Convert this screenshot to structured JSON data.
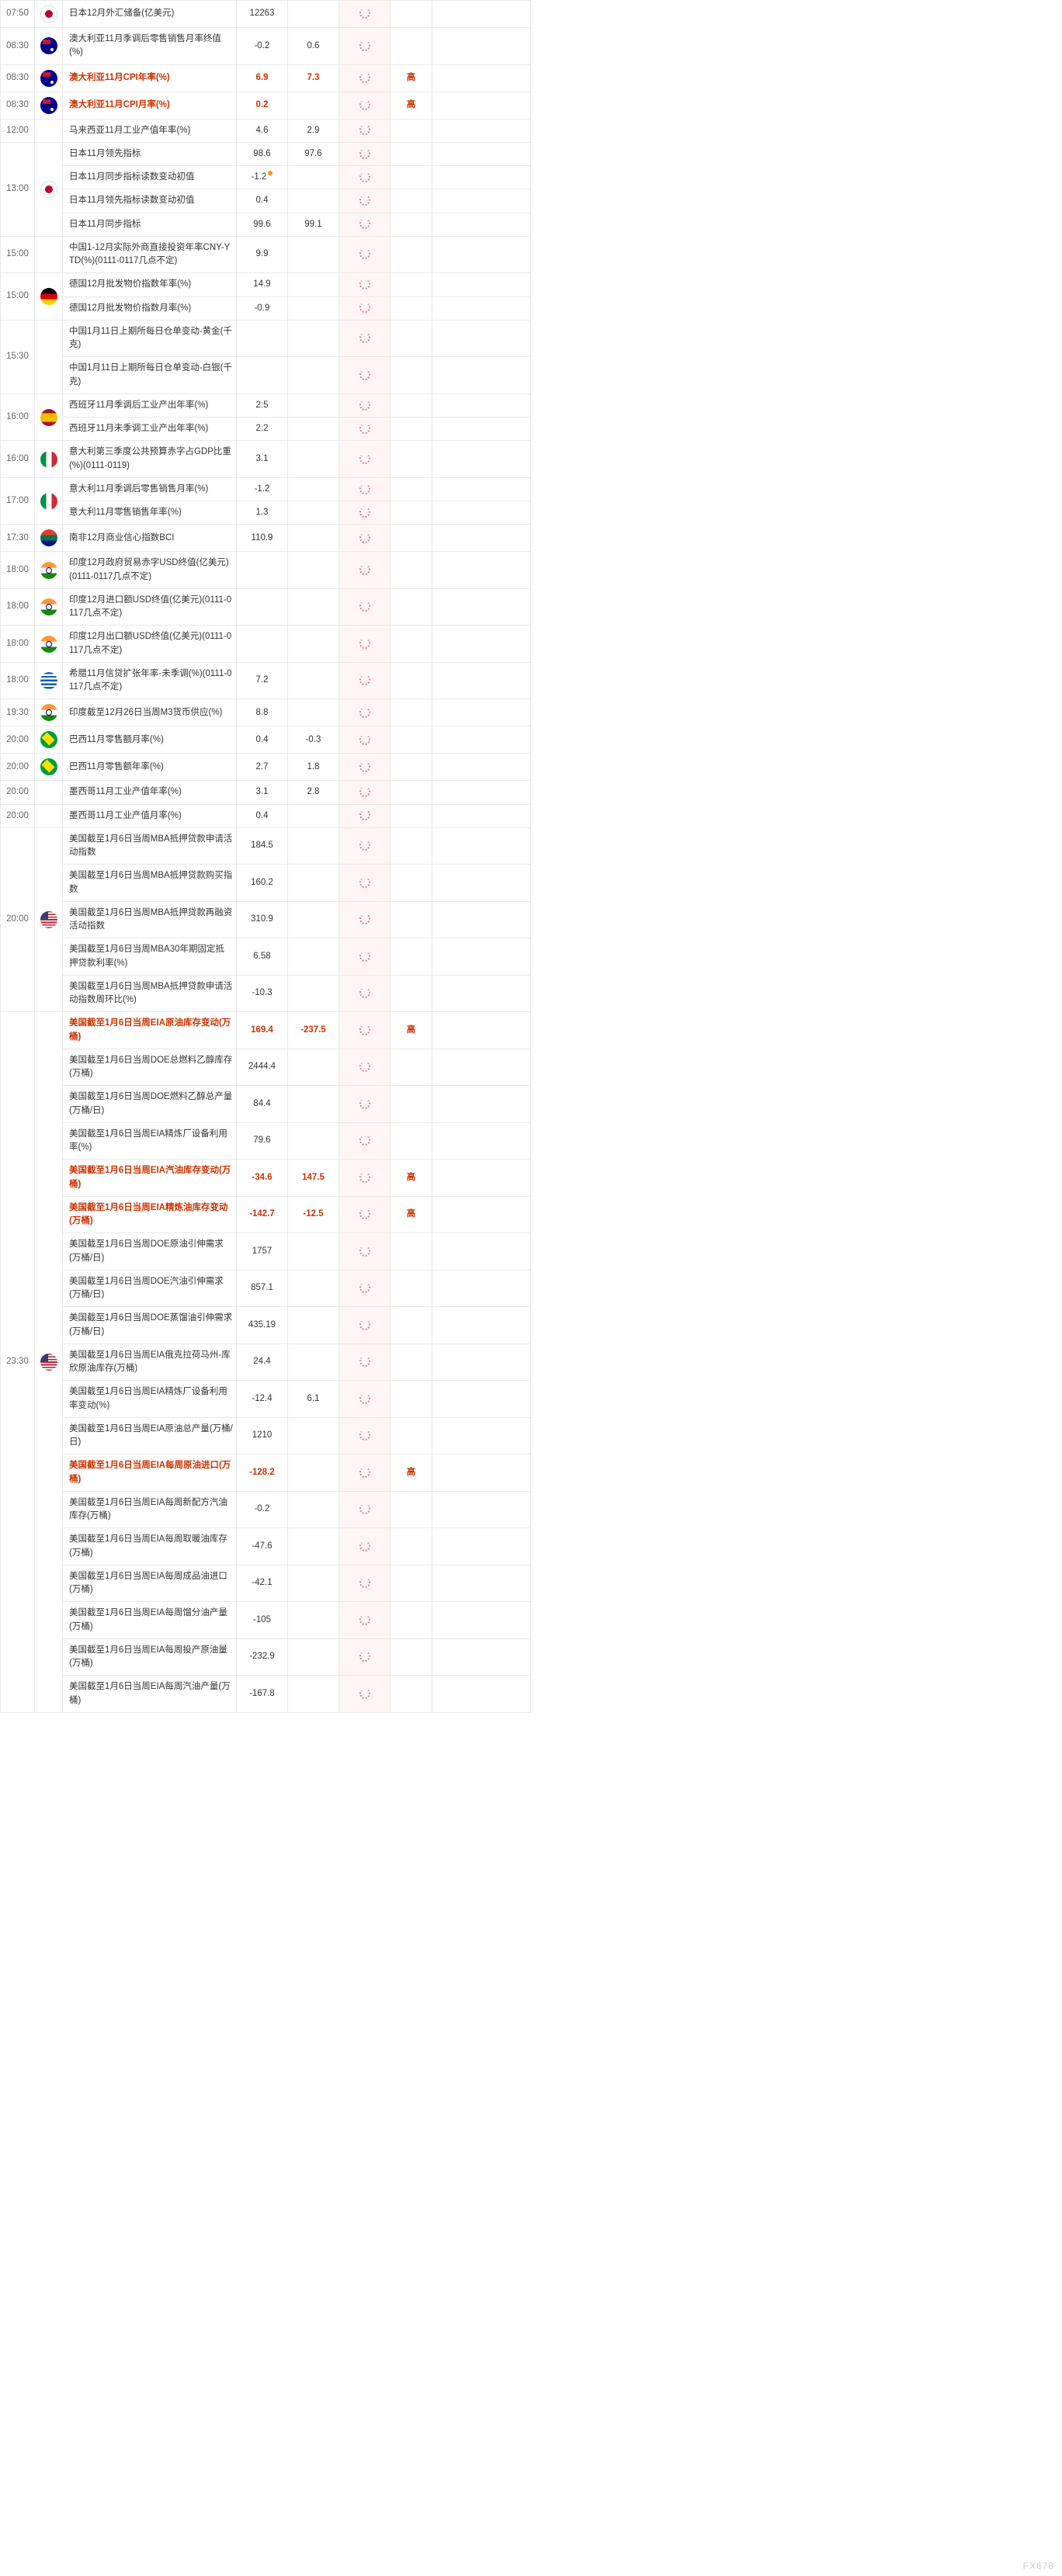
{
  "watermark": "FX678",
  "flag_classes": {
    "jp": "flag-jp",
    "au": "flag-au",
    "de": "flag-de",
    "es": "flag-es",
    "it": "flag-it",
    "za": "flag-za",
    "in": "flag-in",
    "gr": "flag-gr",
    "br": "flag-br",
    "us": "flag-us",
    "": ""
  },
  "groups": [
    {
      "time": "07:50",
      "flag": "jp",
      "rows": [
        {
          "name": "日本12月外汇储备(亿美元)",
          "v1": "12263",
          "v2": "",
          "imp": "",
          "hl": false
        }
      ]
    },
    {
      "time": "08:30",
      "flag": "au",
      "rows": [
        {
          "name": "澳大利亚11月季调后零售销售月率终值(%)",
          "v1": "-0.2",
          "v2": "0.6",
          "imp": "",
          "hl": false
        }
      ]
    },
    {
      "time": "08:30",
      "flag": "au",
      "rows": [
        {
          "name": "澳大利亚11月CPI年率(%)",
          "v1": "6.9",
          "v2": "7.3",
          "imp": "高",
          "hl": true
        }
      ]
    },
    {
      "time": "08:30",
      "flag": "au",
      "rows": [
        {
          "name": "澳大利亚11月CPI月率(%)",
          "v1": "0.2",
          "v2": "",
          "imp": "高",
          "hl": true
        }
      ]
    },
    {
      "time": "12:00",
      "flag": "",
      "rows": [
        {
          "name": "马来西亚11月工业产值年率(%)",
          "v1": "4.6",
          "v2": "2.9",
          "imp": "",
          "hl": false
        }
      ]
    },
    {
      "time": "13:00",
      "flag": "jp",
      "rows": [
        {
          "name": "日本11月领先指标",
          "v1": "98.6",
          "v2": "97.6",
          "imp": "",
          "hl": false
        },
        {
          "name": "日本11月同步指标读数变动初值",
          "v1": "-1.2",
          "v2": "",
          "imp": "",
          "hl": false,
          "dot": true
        },
        {
          "name": "日本11月领先指标读数变动初值",
          "v1": "0.4",
          "v2": "",
          "imp": "",
          "hl": false
        },
        {
          "name": "日本11月同步指标",
          "v1": "99.6",
          "v2": "99.1",
          "imp": "",
          "hl": false
        }
      ]
    },
    {
      "time": "15:00",
      "flag": "",
      "rows": [
        {
          "name": "中国1-12月实际外商直接投资年率CNY-YTD(%)(0111-0117几点不定)",
          "v1": "9.9",
          "v2": "",
          "imp": "",
          "hl": false
        }
      ]
    },
    {
      "time": "15:00",
      "flag": "de",
      "rows": [
        {
          "name": "德国12月批发物价指数年率(%)",
          "v1": "14.9",
          "v2": "",
          "imp": "",
          "hl": false
        },
        {
          "name": "德国12月批发物价指数月率(%)",
          "v1": "-0.9",
          "v2": "",
          "imp": "",
          "hl": false
        }
      ]
    },
    {
      "time": "15:30",
      "flag": "",
      "rows": [
        {
          "name": "中国1月11日上期所每日仓单变动-黄金(千克)",
          "v1": "",
          "v2": "",
          "imp": "",
          "hl": false
        },
        {
          "name": "中国1月11日上期所每日仓单变动-白银(千克)",
          "v1": "",
          "v2": "",
          "imp": "",
          "hl": false
        }
      ]
    },
    {
      "time": "16:00",
      "flag": "es",
      "rows": [
        {
          "name": "西班牙11月季调后工业产出年率(%)",
          "v1": "2.5",
          "v2": "",
          "imp": "",
          "hl": false
        },
        {
          "name": "西班牙11月未季调工业产出年率(%)",
          "v1": "2.2",
          "v2": "",
          "imp": "",
          "hl": false
        }
      ]
    },
    {
      "time": "16:00",
      "flag": "it",
      "rows": [
        {
          "name": "意大利第三季度公共预算赤字占GDP比重(%)(0111-0119)",
          "v1": "3.1",
          "v2": "",
          "imp": "",
          "hl": false
        }
      ]
    },
    {
      "time": "17:00",
      "flag": "it",
      "rows": [
        {
          "name": "意大利11月季调后零售销售月率(%)",
          "v1": "-1.2",
          "v2": "",
          "imp": "",
          "hl": false
        },
        {
          "name": "意大利11月零售销售年率(%)",
          "v1": "1.3",
          "v2": "",
          "imp": "",
          "hl": false
        }
      ]
    },
    {
      "time": "17:30",
      "flag": "za",
      "rows": [
        {
          "name": "南非12月商业信心指数BCI",
          "v1": "110.9",
          "v2": "",
          "imp": "",
          "hl": false
        }
      ]
    },
    {
      "time": "18:00",
      "flag": "in",
      "rows": [
        {
          "name": "印度12月政府贸易赤字USD终值(亿美元)(0111-0117几点不定)",
          "v1": "",
          "v2": "",
          "imp": "",
          "hl": false
        }
      ]
    },
    {
      "time": "18:00",
      "flag": "in",
      "rows": [
        {
          "name": "印度12月进口额USD终值(亿美元)(0111-0117几点不定)",
          "v1": "",
          "v2": "",
          "imp": "",
          "hl": false
        }
      ]
    },
    {
      "time": "18:00",
      "flag": "in",
      "rows": [
        {
          "name": "印度12月出口额USD终值(亿美元)(0111-0117几点不定)",
          "v1": "",
          "v2": "",
          "imp": "",
          "hl": false
        }
      ]
    },
    {
      "time": "18:00",
      "flag": "gr",
      "rows": [
        {
          "name": "希腊11月信贷扩张年率-未季调(%)(0111-0117几点不定)",
          "v1": "7.2",
          "v2": "",
          "imp": "",
          "hl": false
        }
      ]
    },
    {
      "time": "19:30",
      "flag": "in",
      "rows": [
        {
          "name": "印度截至12月26日当周M3货币供应(%)",
          "v1": "8.8",
          "v2": "",
          "imp": "",
          "hl": false
        }
      ]
    },
    {
      "time": "20:00",
      "flag": "br",
      "rows": [
        {
          "name": "巴西11月零售额月率(%)",
          "v1": "0.4",
          "v2": "-0.3",
          "imp": "",
          "hl": false
        }
      ]
    },
    {
      "time": "20:00",
      "flag": "br",
      "rows": [
        {
          "name": "巴西11月零售额年率(%)",
          "v1": "2.7",
          "v2": "1.8",
          "imp": "",
          "hl": false
        }
      ]
    },
    {
      "time": "20:00",
      "flag": "",
      "rows": [
        {
          "name": "墨西哥11月工业产值年率(%)",
          "v1": "3.1",
          "v2": "2.8",
          "imp": "",
          "hl": false
        }
      ]
    },
    {
      "time": "20:00",
      "flag": "",
      "rows": [
        {
          "name": "墨西哥11月工业产值月率(%)",
          "v1": "0.4",
          "v2": "",
          "imp": "",
          "hl": false
        }
      ]
    },
    {
      "time": "20:00",
      "flag": "us",
      "rows": [
        {
          "name": "美国截至1月6日当周MBA抵押贷款申请活动指数",
          "v1": "184.5",
          "v2": "",
          "imp": "",
          "hl": false
        },
        {
          "name": "美国截至1月6日当周MBA抵押贷款购买指数",
          "v1": "160.2",
          "v2": "",
          "imp": "",
          "hl": false
        },
        {
          "name": "美国截至1月6日当周MBA抵押贷款再融资活动指数",
          "v1": "310.9",
          "v2": "",
          "imp": "",
          "hl": false
        },
        {
          "name": "美国截至1月6日当周MBA30年期固定抵押贷款利率(%)",
          "v1": "6.58",
          "v2": "",
          "imp": "",
          "hl": false
        },
        {
          "name": "美国截至1月6日当周MBA抵押贷款申请活动指数周环比(%)",
          "v1": "-10.3",
          "v2": "",
          "imp": "",
          "hl": false
        }
      ]
    },
    {
      "time": "23:30",
      "flag": "us",
      "rows": [
        {
          "name": "美国截至1月6日当周EIA原油库存变动(万桶)",
          "v1": "169.4",
          "v2": "-237.5",
          "imp": "高",
          "hl": true
        },
        {
          "name": "美国截至1月6日当周DOE总燃料乙醇库存(万桶)",
          "v1": "2444.4",
          "v2": "",
          "imp": "",
          "hl": false
        },
        {
          "name": "美国截至1月6日当周DOE燃料乙醇总产量(万桶/日)",
          "v1": "84.4",
          "v2": "",
          "imp": "",
          "hl": false
        },
        {
          "name": "美国截至1月6日当周EIA精炼厂设备利用率(%)",
          "v1": "79.6",
          "v2": "",
          "imp": "",
          "hl": false
        },
        {
          "name": "美国截至1月6日当周EIA汽油库存变动(万桶)",
          "v1": "-34.6",
          "v2": "147.5",
          "imp": "高",
          "hl": true
        },
        {
          "name": "美国截至1月6日当周EIA精炼油库存变动(万桶)",
          "v1": "-142.7",
          "v2": "-12.5",
          "imp": "高",
          "hl": true
        },
        {
          "name": "美国截至1月6日当周DOE原油引伸需求(万桶/日)",
          "v1": "1757",
          "v2": "",
          "imp": "",
          "hl": false
        },
        {
          "name": "美国截至1月6日当周DOE汽油引伸需求(万桶/日)",
          "v1": "857.1",
          "v2": "",
          "imp": "",
          "hl": false
        },
        {
          "name": "美国截至1月6日当周DOE蒸馏油引伸需求(万桶/日)",
          "v1": "435.19",
          "v2": "",
          "imp": "",
          "hl": false
        },
        {
          "name": "美国截至1月6日当周EIA俄克拉荷马州-库欣原油库存(万桶)",
          "v1": "24.4",
          "v2": "",
          "imp": "",
          "hl": false
        },
        {
          "name": "美国截至1月6日当周EIA精炼厂设备利用率变动(%)",
          "v1": "-12.4",
          "v2": "6.1",
          "imp": "",
          "hl": false
        },
        {
          "name": "美国截至1月6日当周EIA原油总产量(万桶/日)",
          "v1": "1210",
          "v2": "",
          "imp": "",
          "hl": false
        },
        {
          "name": "美国截至1月6日当周EIA每周原油进口(万桶)",
          "v1": "-128.2",
          "v2": "",
          "imp": "高",
          "hl": true
        },
        {
          "name": "美国截至1月6日当周EIA每周新配方汽油库存(万桶)",
          "v1": "-0.2",
          "v2": "",
          "imp": "",
          "hl": false
        },
        {
          "name": "美国截至1月6日当周EIA每周取暖油库存(万桶)",
          "v1": "-47.6",
          "v2": "",
          "imp": "",
          "hl": false
        },
        {
          "name": "美国截至1月6日当周EIA每周成品油进口(万桶)",
          "v1": "-42.1",
          "v2": "",
          "imp": "",
          "hl": false
        },
        {
          "name": "美国截至1月6日当周EIA每周馏分油产量(万桶)",
          "v1": "-105",
          "v2": "",
          "imp": "",
          "hl": false
        },
        {
          "name": "美国截至1月6日当周EIA每周投产原油量(万桶)",
          "v1": "-232.9",
          "v2": "",
          "imp": "",
          "hl": false
        },
        {
          "name": "美国截至1月6日当周EIA每周汽油产量(万桶)",
          "v1": "-167.8",
          "v2": "",
          "imp": "",
          "hl": false
        }
      ]
    }
  ]
}
